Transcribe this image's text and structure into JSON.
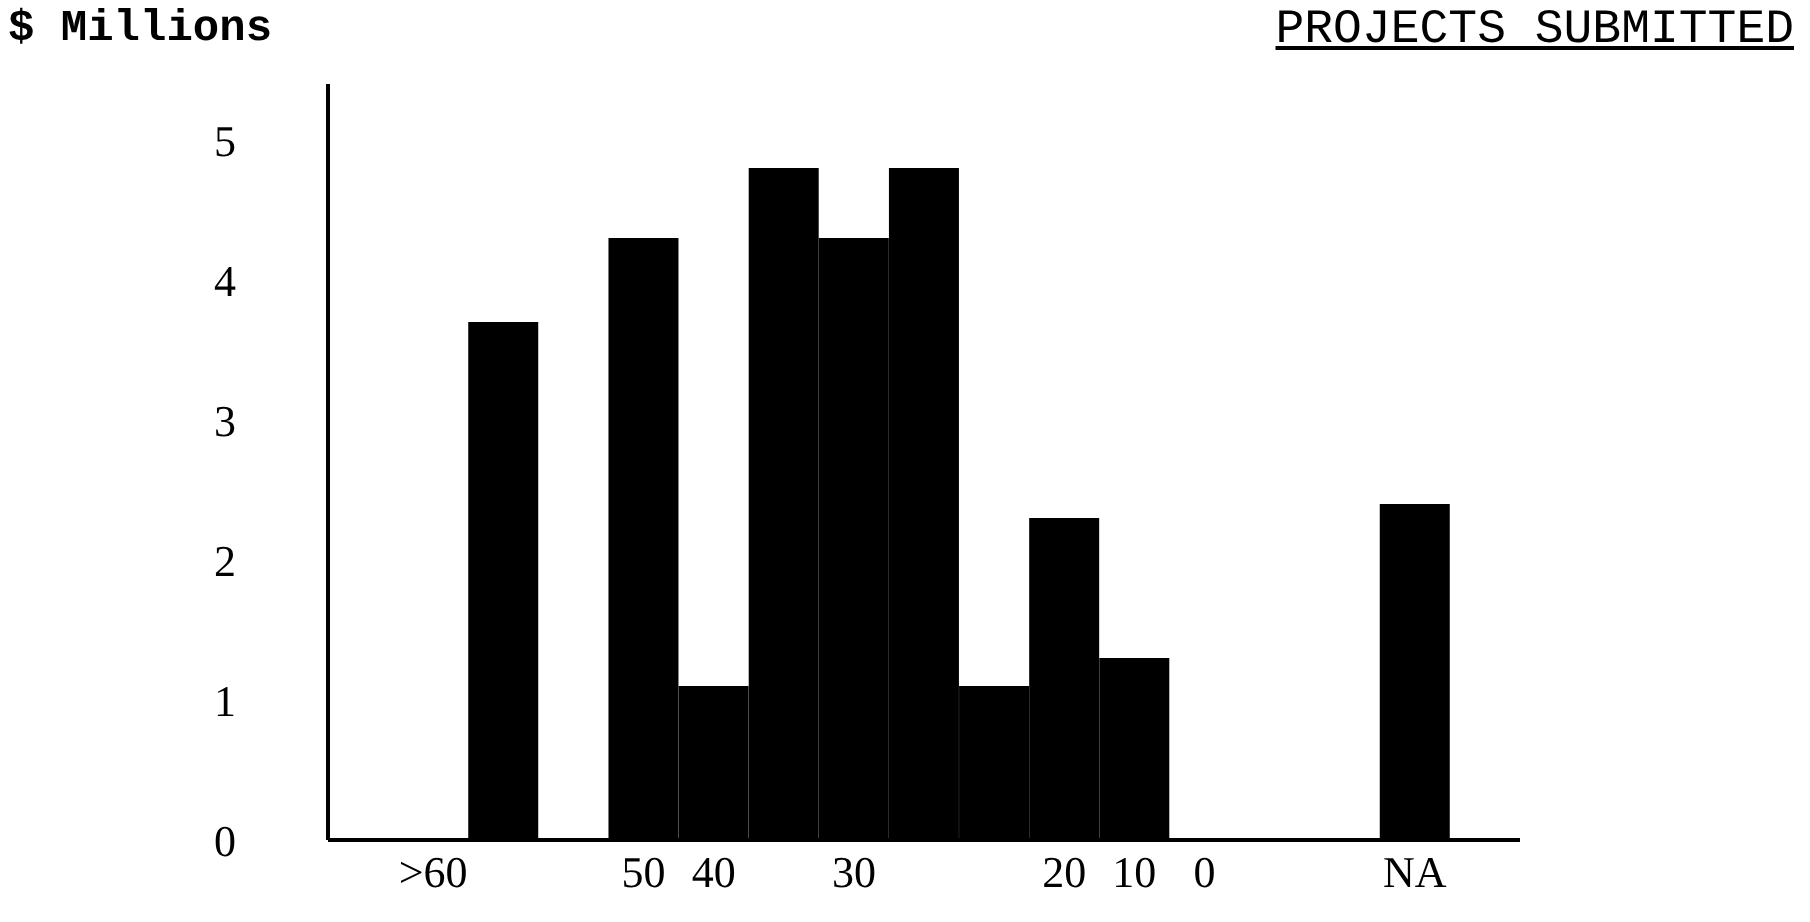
{
  "chart_data": {
    "type": "bar",
    "title": "PROJECTS SUBMITTED",
    "ylabel": "$ Millions",
    "categories": [
      null,
      ">60",
      null,
      null,
      "50",
      "40",
      null,
      "30",
      null,
      null,
      "20",
      "10",
      "0",
      null,
      null,
      "NA",
      null
    ],
    "values": [
      null,
      null,
      3.7,
      null,
      4.3,
      1.1,
      4.8,
      4.3,
      4.8,
      1.1,
      2.3,
      1.3,
      null,
      null,
      null,
      2.4,
      null
    ],
    "color": "#000000",
    "ylim": [
      0,
      5.4
    ],
    "yticks": [
      0,
      1,
      2,
      3,
      4,
      5
    ]
  }
}
